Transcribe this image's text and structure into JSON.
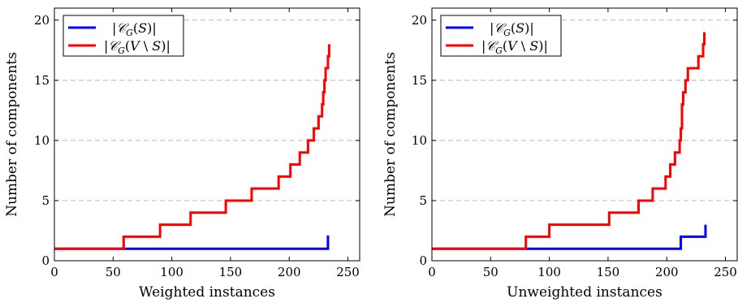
{
  "chart_data": [
    {
      "type": "line",
      "xlabel": "Weighted instances",
      "ylabel": "Number of components",
      "xlim": [
        0,
        260
      ],
      "ylim": [
        0,
        21
      ],
      "xticks": [
        0,
        50,
        100,
        150,
        200,
        250
      ],
      "yticks": [
        0,
        5,
        10,
        15,
        20
      ],
      "grid": "horizontal-dashed",
      "legend": "top-left",
      "series": [
        {
          "name": "|𝒞_G(S)|",
          "color": "#0000ff",
          "step": true,
          "points": [
            [
              0,
              1
            ],
            [
              232,
              1
            ],
            [
              233,
              2
            ],
            [
              234,
              2
            ]
          ]
        },
        {
          "name": "|𝒞_G(V \\ S)|",
          "color": "#ff0000",
          "step": true,
          "points": [
            [
              0,
              1
            ],
            [
              58,
              1
            ],
            [
              59,
              2
            ],
            [
              89,
              2
            ],
            [
              90,
              3
            ],
            [
              115,
              3
            ],
            [
              116,
              4
            ],
            [
              145,
              4
            ],
            [
              146,
              5
            ],
            [
              167,
              5
            ],
            [
              168,
              6
            ],
            [
              190,
              6
            ],
            [
              191,
              7
            ],
            [
              200,
              7
            ],
            [
              201,
              8
            ],
            [
              208,
              8
            ],
            [
              209,
              9
            ],
            [
              215,
              9
            ],
            [
              216,
              10
            ],
            [
              220,
              10
            ],
            [
              221,
              11
            ],
            [
              224,
              11
            ],
            [
              225,
              12
            ],
            [
              227,
              12
            ],
            [
              228,
              13
            ],
            [
              229,
              14
            ],
            [
              230,
              15
            ],
            [
              231,
              16
            ],
            [
              232,
              16
            ],
            [
              233,
              17
            ],
            [
              234,
              18
            ]
          ]
        }
      ]
    },
    {
      "type": "line",
      "xlabel": "Unweighted instances",
      "ylabel": "Number of components",
      "xlim": [
        0,
        260
      ],
      "ylim": [
        0,
        21
      ],
      "xticks": [
        0,
        50,
        100,
        150,
        200,
        250
      ],
      "yticks": [
        0,
        5,
        10,
        15,
        20
      ],
      "grid": "horizontal-dashed",
      "legend": "top-left",
      "series": [
        {
          "name": "|𝒞_G(S)|",
          "color": "#0000ff",
          "step": true,
          "points": [
            [
              0,
              1
            ],
            [
              211,
              1
            ],
            [
              212,
              2
            ],
            [
              232,
              2
            ],
            [
              233,
              3
            ]
          ]
        },
        {
          "name": "|𝒞_G(V \\ S)|",
          "color": "#ff0000",
          "step": true,
          "points": [
            [
              0,
              1
            ],
            [
              79,
              1
            ],
            [
              80,
              2
            ],
            [
              99,
              2
            ],
            [
              100,
              3
            ],
            [
              150,
              3
            ],
            [
              151,
              4
            ],
            [
              175,
              4
            ],
            [
              176,
              5
            ],
            [
              187,
              5
            ],
            [
              188,
              6
            ],
            [
              198,
              6
            ],
            [
              199,
              7
            ],
            [
              202,
              7
            ],
            [
              203,
              8
            ],
            [
              206,
              8
            ],
            [
              207,
              9
            ],
            [
              210,
              9
            ],
            [
              211,
              10
            ],
            [
              212,
              11
            ],
            [
              213,
              13
            ],
            [
              214,
              14
            ],
            [
              215,
              14
            ],
            [
              216,
              15
            ],
            [
              217,
              15
            ],
            [
              218,
              16
            ],
            [
              226,
              16
            ],
            [
              227,
              17
            ],
            [
              230,
              17
            ],
            [
              231,
              18
            ],
            [
              232,
              19
            ]
          ]
        }
      ]
    }
  ]
}
